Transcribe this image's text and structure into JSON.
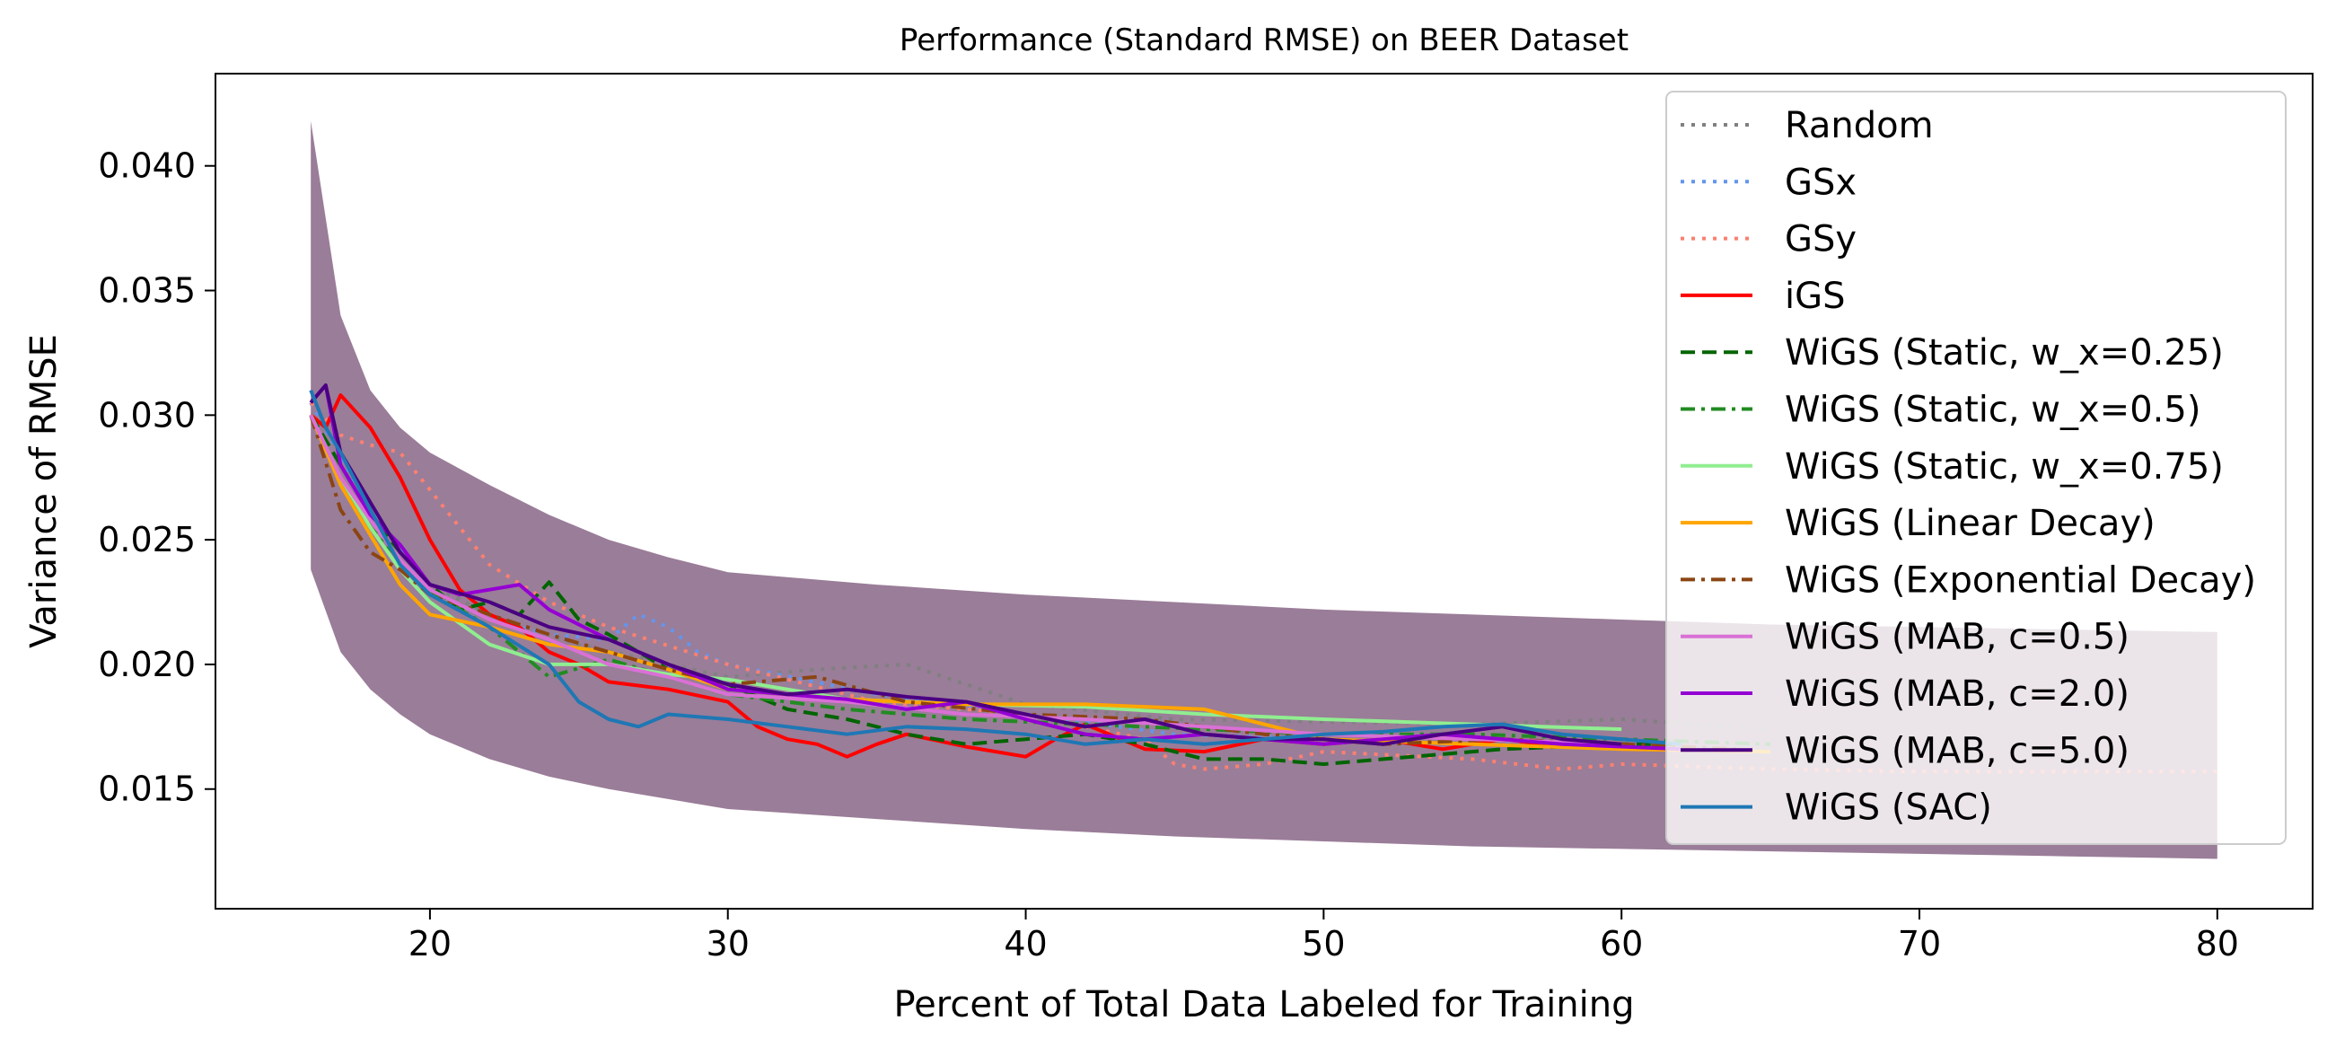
{
  "chart_data": {
    "type": "line",
    "title": "Performance (Standard RMSE) on BEER Dataset",
    "xlabel": "Percent of Total Data Labeled for Training",
    "ylabel": "Variance of RMSE",
    "xlim": [
      12.8,
      83.2
    ],
    "ylim": [
      0.0102,
      0.0437
    ],
    "xticks": [
      20,
      30,
      40,
      50,
      60,
      70,
      80
    ],
    "xtick_labels": [
      "20",
      "30",
      "40",
      "50",
      "60",
      "70",
      "80"
    ],
    "yticks": [
      0.015,
      0.02,
      0.025,
      0.03,
      0.035,
      0.04
    ],
    "ytick_labels": [
      "0.015",
      "0.020",
      "0.025",
      "0.030",
      "0.035",
      "0.040"
    ],
    "grid": false,
    "legend_position": "upper right",
    "band": {
      "description_color": "#8c6b8a",
      "x": [
        16,
        17,
        18,
        19,
        20,
        22,
        24,
        26,
        28,
        30,
        35,
        40,
        45,
        50,
        55,
        60,
        65,
        70,
        75,
        80
      ],
      "upper": [
        0.0418,
        0.034,
        0.031,
        0.0295,
        0.0285,
        0.0272,
        0.026,
        0.025,
        0.0243,
        0.0237,
        0.0232,
        0.0228,
        0.0225,
        0.0222,
        0.022,
        0.0218,
        0.0216,
        0.0215,
        0.0214,
        0.0213
      ],
      "lower": [
        0.0238,
        0.0205,
        0.019,
        0.018,
        0.0172,
        0.0162,
        0.0155,
        0.015,
        0.0146,
        0.0142,
        0.0138,
        0.0134,
        0.0131,
        0.0129,
        0.0127,
        0.0126,
        0.0125,
        0.0124,
        0.0123,
        0.0122
      ]
    },
    "series": [
      {
        "name": "Random",
        "color": "#808080",
        "dash": "dotted",
        "x": [
          16,
          18,
          20,
          22,
          25,
          28,
          30,
          33,
          36,
          40,
          45,
          50,
          55,
          60,
          65
        ],
        "y": [
          0.0305,
          0.0262,
          0.0232,
          0.022,
          0.0208,
          0.02,
          0.0195,
          0.0198,
          0.02,
          0.0184,
          0.0178,
          0.0177,
          0.0176,
          0.0178,
          0.0174
        ]
      },
      {
        "name": "GSx",
        "color": "#6495ed",
        "dash": "dotted",
        "x": [
          16,
          18,
          20,
          22,
          24,
          26,
          27,
          28,
          29,
          30,
          35,
          40,
          45,
          50,
          55,
          60,
          65
        ],
        "y": [
          0.0305,
          0.0262,
          0.023,
          0.0218,
          0.0212,
          0.021,
          0.022,
          0.0215,
          0.0205,
          0.02,
          0.0188,
          0.018,
          0.0172,
          0.017,
          0.0168,
          0.0167,
          0.0165
        ]
      },
      {
        "name": "GSy",
        "color": "#fa8072",
        "dash": "dotted",
        "x": [
          16,
          17,
          18,
          19,
          20,
          22,
          24,
          26,
          30,
          35,
          40,
          44,
          45,
          46,
          48,
          50,
          55,
          58,
          60,
          65,
          70,
          75,
          80
        ],
        "y": [
          0.0305,
          0.0292,
          0.0288,
          0.0285,
          0.027,
          0.024,
          0.0225,
          0.0215,
          0.02,
          0.0185,
          0.018,
          0.017,
          0.016,
          0.0158,
          0.016,
          0.0165,
          0.0162,
          0.0158,
          0.016,
          0.0158,
          0.0157,
          0.0157,
          0.0157
        ]
      },
      {
        "name": "iGS",
        "color": "#ff0000",
        "dash": "solid",
        "x": [
          16,
          16.5,
          17,
          18,
          19,
          20,
          21,
          22,
          23,
          24,
          25,
          26,
          28,
          30,
          31,
          32,
          33,
          34,
          35,
          36,
          38,
          40,
          41,
          42,
          44,
          46,
          48,
          50,
          52,
          54,
          56,
          58,
          60
        ],
        "y": [
          0.03,
          0.0295,
          0.0308,
          0.0295,
          0.0275,
          0.025,
          0.023,
          0.022,
          0.0215,
          0.0205,
          0.02,
          0.0193,
          0.019,
          0.0185,
          0.0175,
          0.017,
          0.0168,
          0.0163,
          0.0168,
          0.0172,
          0.0167,
          0.0163,
          0.017,
          0.0176,
          0.0166,
          0.0165,
          0.017,
          0.0168,
          0.017,
          0.0166,
          0.017,
          0.0167,
          0.0168
        ]
      },
      {
        "name": "WiGS (Static, w_x=0.25)",
        "color": "#006400",
        "dash": "dashed",
        "x": [
          16,
          17,
          18,
          19,
          20,
          21,
          22,
          23,
          24,
          25,
          26,
          27,
          28,
          30,
          32,
          34,
          36,
          38,
          40,
          42,
          44,
          46,
          48,
          50,
          52,
          54,
          56,
          58,
          60,
          62
        ],
        "y": [
          0.03,
          0.028,
          0.026,
          0.0245,
          0.0232,
          0.0222,
          0.0225,
          0.022,
          0.0233,
          0.0218,
          0.0212,
          0.0205,
          0.0198,
          0.0192,
          0.0182,
          0.0178,
          0.0172,
          0.0168,
          0.017,
          0.0172,
          0.0168,
          0.0162,
          0.0162,
          0.016,
          0.0162,
          0.0164,
          0.0166,
          0.0167,
          0.0168,
          0.0168
        ]
      },
      {
        "name": "WiGS (Static, w_x=0.5)",
        "color": "#228b22",
        "dash": "dashdot",
        "x": [
          16,
          17,
          18,
          19,
          20,
          21,
          22,
          24,
          26,
          28,
          30,
          34,
          38,
          42,
          46,
          50,
          55,
          60,
          65
        ],
        "y": [
          0.03,
          0.0275,
          0.0255,
          0.0242,
          0.023,
          0.0222,
          0.0215,
          0.0195,
          0.0202,
          0.0195,
          0.0188,
          0.0182,
          0.0178,
          0.0176,
          0.0174,
          0.0172,
          0.0172,
          0.017,
          0.0168
        ]
      },
      {
        "name": "WiGS (Static, w_x=0.75)",
        "color": "#90ee90",
        "dash": "solid",
        "x": [
          16,
          17,
          18,
          19,
          20,
          22,
          24,
          26,
          28,
          30,
          34,
          38,
          42,
          46,
          50,
          55,
          60
        ],
        "y": [
          0.03,
          0.0275,
          0.0255,
          0.0238,
          0.0225,
          0.0208,
          0.02,
          0.02,
          0.0196,
          0.0194,
          0.0186,
          0.0184,
          0.0183,
          0.018,
          0.0178,
          0.0176,
          0.0174
        ]
      },
      {
        "name": "WiGS (Linear Decay)",
        "color": "#ffa500",
        "dash": "solid",
        "x": [
          16,
          17,
          18,
          19,
          20,
          22,
          24,
          26,
          28,
          30,
          34,
          38,
          42,
          46,
          50,
          55,
          60,
          65
        ],
        "y": [
          0.03,
          0.0272,
          0.0252,
          0.0232,
          0.022,
          0.0215,
          0.0208,
          0.0205,
          0.0198,
          0.019,
          0.0186,
          0.0184,
          0.0184,
          0.0182,
          0.017,
          0.0168,
          0.0166,
          0.0165
        ]
      },
      {
        "name": "WiGS (Exponential Decay)",
        "color": "#8b4513",
        "dash": "dashdot",
        "x": [
          16,
          17,
          18,
          19,
          20,
          22,
          24,
          26,
          28,
          30,
          33,
          36,
          40,
          44,
          48,
          52,
          56,
          60,
          64
        ],
        "y": [
          0.03,
          0.0262,
          0.0245,
          0.0238,
          0.0228,
          0.022,
          0.0212,
          0.0205,
          0.0198,
          0.0192,
          0.0195,
          0.0185,
          0.018,
          0.0178,
          0.0172,
          0.0168,
          0.017,
          0.0168,
          0.0166
        ]
      },
      {
        "name": "WiGS (MAB, c=0.5)",
        "color": "#da70d6",
        "dash": "solid",
        "x": [
          16,
          17,
          18,
          19,
          20,
          22,
          24,
          26,
          28,
          30,
          34,
          38,
          42,
          46,
          50,
          55,
          60
        ],
        "y": [
          0.03,
          0.0275,
          0.0258,
          0.0242,
          0.023,
          0.0218,
          0.021,
          0.02,
          0.0195,
          0.0188,
          0.0185,
          0.018,
          0.0178,
          0.0175,
          0.0172,
          0.017,
          0.0168
        ]
      },
      {
        "name": "WiGS (MAB, c=2.0)",
        "color": "#9400d3",
        "dash": "solid",
        "x": [
          16,
          16.5,
          17,
          18,
          19,
          20,
          21,
          22,
          23,
          24,
          26,
          28,
          30,
          32,
          34,
          36,
          38,
          40,
          42,
          44,
          46,
          48,
          50,
          54,
          58,
          62
        ],
        "y": [
          0.0305,
          0.0312,
          0.028,
          0.026,
          0.0248,
          0.0232,
          0.0228,
          0.023,
          0.0232,
          0.0222,
          0.021,
          0.02,
          0.019,
          0.0188,
          0.0186,
          0.0182,
          0.0185,
          0.0178,
          0.0172,
          0.017,
          0.0172,
          0.017,
          0.0168,
          0.0172,
          0.0168,
          0.0166
        ]
      },
      {
        "name": "WiGS (MAB, c=5.0)",
        "color": "#4b0082",
        "dash": "solid",
        "x": [
          16,
          16.5,
          17,
          18,
          19,
          20,
          22,
          24,
          26,
          28,
          30,
          32,
          34,
          36,
          38,
          40,
          42,
          44,
          46,
          48,
          50,
          52,
          54,
          56,
          58,
          60
        ],
        "y": [
          0.0305,
          0.0312,
          0.0285,
          0.0265,
          0.0245,
          0.0232,
          0.0225,
          0.0215,
          0.021,
          0.02,
          0.0192,
          0.0188,
          0.019,
          0.0187,
          0.0185,
          0.018,
          0.0175,
          0.0178,
          0.0172,
          0.017,
          0.017,
          0.0168,
          0.0172,
          0.0175,
          0.017,
          0.0168
        ]
      },
      {
        "name": "WiGS (SAC)",
        "color": "#1f77b4",
        "dash": "solid",
        "x": [
          16,
          16.5,
          17,
          18,
          19,
          20,
          22,
          24,
          25,
          26,
          27,
          28,
          30,
          32,
          34,
          36,
          38,
          40,
          42,
          44,
          46,
          48,
          50,
          52,
          54,
          56,
          58,
          60,
          62
        ],
        "y": [
          0.031,
          0.0295,
          0.0285,
          0.0262,
          0.024,
          0.0228,
          0.0215,
          0.02,
          0.0185,
          0.0178,
          0.0175,
          0.018,
          0.0178,
          0.0175,
          0.0172,
          0.0175,
          0.0174,
          0.0172,
          0.0168,
          0.017,
          0.0168,
          0.017,
          0.0172,
          0.0173,
          0.0175,
          0.0176,
          0.0172,
          0.017,
          0.0168
        ]
      }
    ]
  }
}
